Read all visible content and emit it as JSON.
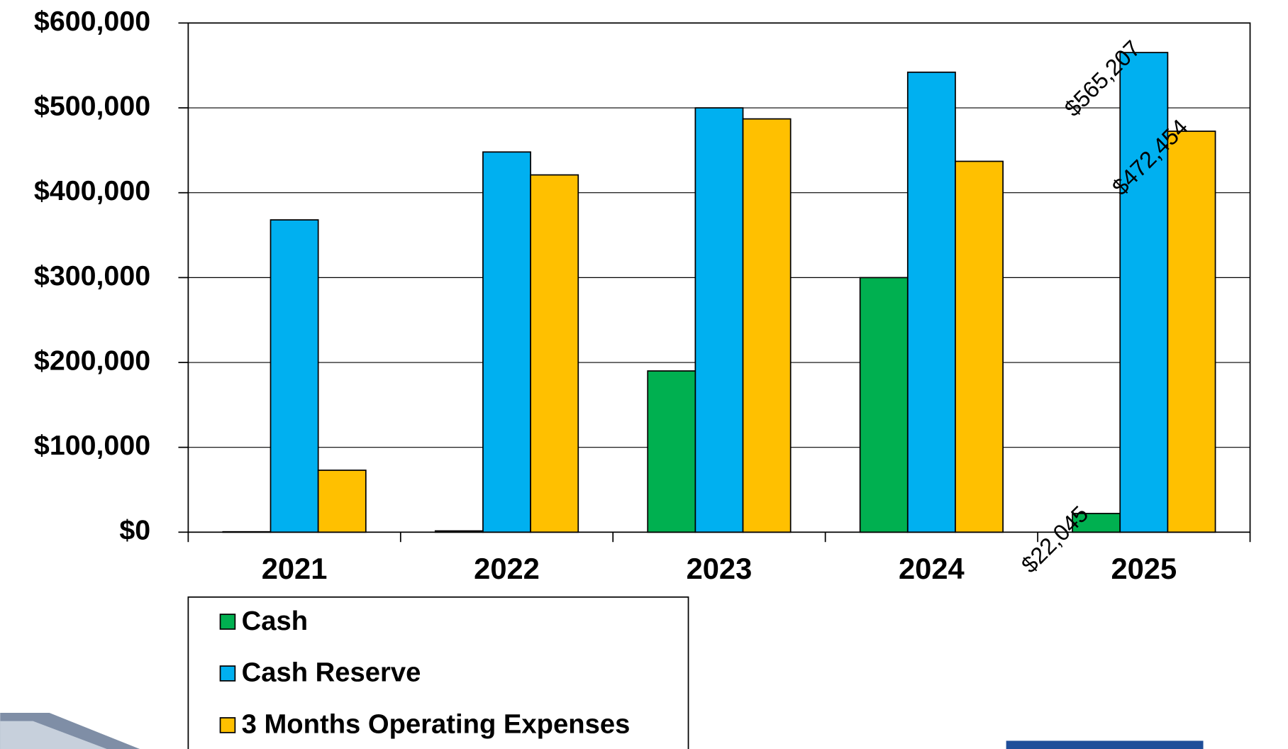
{
  "chart_data": {
    "type": "bar",
    "categories": [
      "2021",
      "2022",
      "2023",
      "2024",
      "2025"
    ],
    "series": [
      {
        "name": "Cash",
        "color": "#00b050",
        "values": [
          500,
          1500,
          190000,
          300000,
          22045
        ],
        "value_labels": [
          null,
          null,
          null,
          null,
          "$22,045"
        ]
      },
      {
        "name": "Cash Reserve",
        "color": "#00b0f0",
        "values": [
          368000,
          448000,
          500000,
          542000,
          565207
        ],
        "value_labels": [
          null,
          null,
          null,
          null,
          "$565,207"
        ]
      },
      {
        "name": "3 Months Operating Expenses",
        "color": "#ffc000",
        "values": [
          73000,
          421000,
          487000,
          437000,
          472454
        ],
        "value_labels": [
          null,
          null,
          null,
          null,
          "$472,454"
        ]
      }
    ],
    "ylim": [
      0,
      600000
    ],
    "yticks": [
      {
        "value": 0,
        "label": "$0"
      },
      {
        "value": 100000,
        "label": "$100,000"
      },
      {
        "value": 200000,
        "label": "$200,000"
      },
      {
        "value": 300000,
        "label": "$300,000"
      },
      {
        "value": 400000,
        "label": "$400,000"
      },
      {
        "value": 500000,
        "label": "$500,000"
      },
      {
        "value": 600000,
        "label": "$600,000"
      }
    ],
    "grid": true
  }
}
